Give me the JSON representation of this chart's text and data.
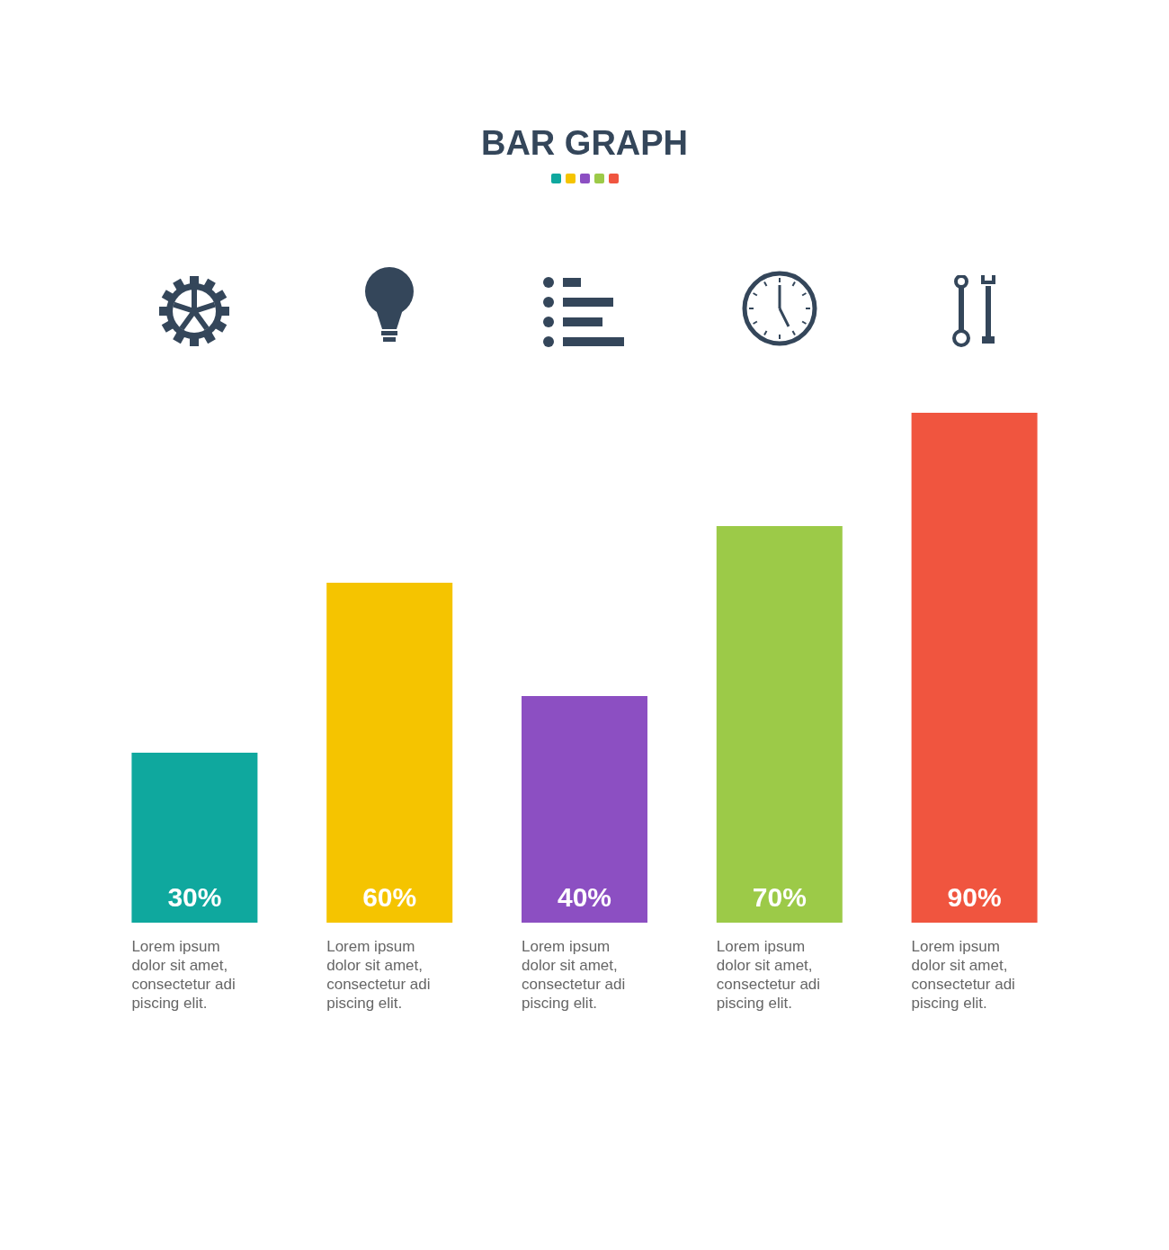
{
  "chart_data": {
    "type": "bar",
    "title": "BAR GRAPH",
    "categories": [
      "Lorem ipsum\ndolor sit amet,\nconsectetur adi\npiscing elit.",
      "Lorem ipsum\ndolor sit amet,\nconsectetur adi\npiscing elit.",
      "Lorem ipsum\ndolor sit amet,\nconsectetur adi\npiscing elit.",
      "Lorem ipsum\ndolor sit amet,\nconsectetur adi\npiscing elit.",
      "Lorem ipsum\ndolor sit amet,\nconsectetur adi\npiscing elit."
    ],
    "values": [
      30,
      60,
      40,
      70,
      90
    ],
    "colors": [
      "#0fa89e",
      "#f5c400",
      "#8c4fc2",
      "#9cca48",
      "#f0553f"
    ],
    "value_labels": [
      "30%",
      "60%",
      "40%",
      "70%",
      "90%"
    ]
  }
}
